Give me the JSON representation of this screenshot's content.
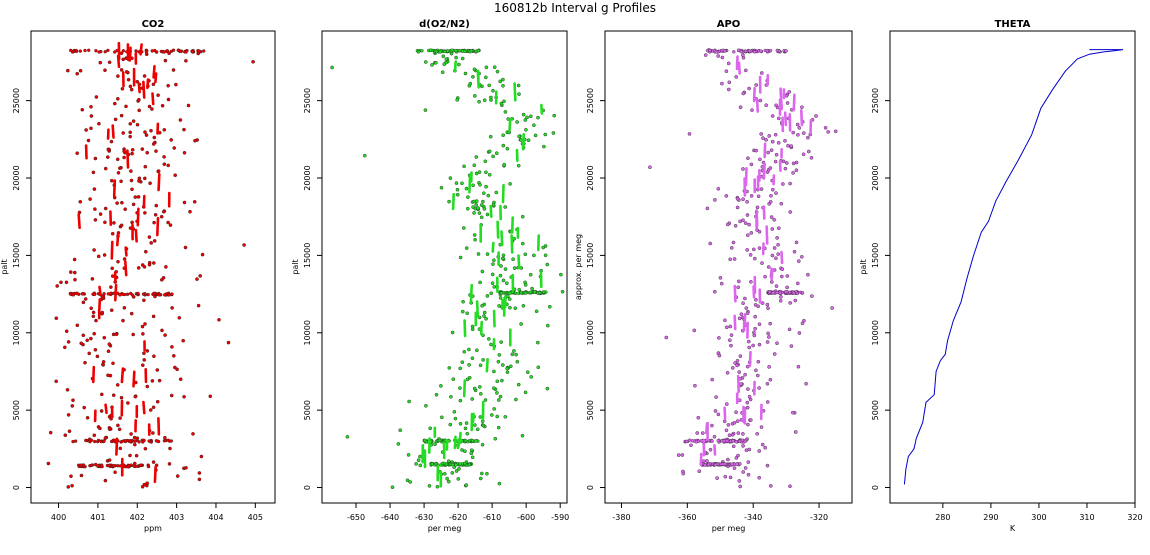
{
  "figure": {
    "title": "160812b   Interval g Profiles"
  },
  "chart_data": [
    {
      "type": "scatter",
      "title": "CO2",
      "xlabel": "ppm",
      "ylabel": "palt",
      "xlim": [
        399.3,
        405.5
      ],
      "ylim": [
        -1000,
        29500
      ],
      "xticks": [
        400,
        401,
        402,
        403,
        404,
        405
      ],
      "yticks": [
        0,
        5000,
        10000,
        15000,
        20000,
        25000
      ],
      "grid": false,
      "color": "#ee0000",
      "spread": 0.9,
      "profile": [
        [
          0,
          402.1
        ],
        [
          1500,
          401.7
        ],
        [
          3000,
          401.6
        ],
        [
          5000,
          401.8
        ],
        [
          7000,
          401.7
        ],
        [
          9000,
          401.6
        ],
        [
          11000,
          401.6
        ],
        [
          12500,
          401.5
        ],
        [
          14000,
          401.6
        ],
        [
          16000,
          401.7
        ],
        [
          18000,
          401.9
        ],
        [
          20000,
          401.9
        ],
        [
          22000,
          401.9
        ],
        [
          24000,
          401.9
        ],
        [
          26000,
          402.3
        ],
        [
          28200,
          402.1
        ]
      ],
      "dense_rows": [
        {
          "y": 28200,
          "x0": 400.3,
          "x1": 403.7
        },
        {
          "y": 3000,
          "x0": 400.3,
          "x1": 402.9
        },
        {
          "y": 1400,
          "x0": 400.5,
          "x1": 402.3
        },
        {
          "y": 12500,
          "x0": 400.3,
          "x1": 402.9
        }
      ]
    },
    {
      "type": "scatter",
      "title": "d(O2/N2)",
      "xlabel": "per meg",
      "ylabel": "palt",
      "xlim": [
        -660,
        -588
      ],
      "ylim": [
        -1000,
        29500
      ],
      "xticks": [
        -650,
        -640,
        -630,
        -620,
        -610,
        -600,
        -590
      ],
      "yticks": [
        0,
        5000,
        10000,
        15000,
        20000,
        25000
      ],
      "grid": false,
      "color": "#22dd22",
      "spread": 7,
      "profile": [
        [
          0,
          -624
        ],
        [
          1500,
          -626
        ],
        [
          3000,
          -622
        ],
        [
          5000,
          -617
        ],
        [
          6500,
          -614
        ],
        [
          8000,
          -610
        ],
        [
          10000,
          -612
        ],
        [
          12000,
          -609
        ],
        [
          13000,
          -604
        ],
        [
          14500,
          -603
        ],
        [
          16000,
          -606
        ],
        [
          18000,
          -614
        ],
        [
          20000,
          -613
        ],
        [
          22000,
          -604
        ],
        [
          23500,
          -596
        ],
        [
          25000,
          -606
        ],
        [
          26500,
          -616
        ],
        [
          28200,
          -624
        ]
      ],
      "dense_rows": [
        {
          "y": 28200,
          "x0": -632,
          "x1": -612
        },
        {
          "y": 3000,
          "x0": -630,
          "x1": -614
        },
        {
          "y": 1500,
          "x0": -628,
          "x1": -616
        },
        {
          "y": 12600,
          "x0": -608,
          "x1": -594
        }
      ]
    },
    {
      "type": "scatter",
      "title": "APO",
      "xlabel": "per meg",
      "ylabel": "approx. per meg",
      "xlim": [
        -385,
        -310
      ],
      "ylim": [
        -1000,
        29500
      ],
      "xticks": [
        -380,
        -360,
        -340,
        -320
      ],
      "yticks": [
        0,
        5000,
        10000,
        15000,
        20000,
        25000
      ],
      "grid": false,
      "color": "#dd66ee",
      "spread": 7,
      "profile": [
        [
          0,
          -347
        ],
        [
          1500,
          -349
        ],
        [
          3000,
          -348
        ],
        [
          5000,
          -344
        ],
        [
          7000,
          -341
        ],
        [
          9000,
          -342
        ],
        [
          11000,
          -341
        ],
        [
          12600,
          -337
        ],
        [
          14000,
          -333
        ],
        [
          16000,
          -338
        ],
        [
          18000,
          -342
        ],
        [
          20000,
          -338
        ],
        [
          22000,
          -332
        ],
        [
          23500,
          -326
        ],
        [
          25000,
          -334
        ],
        [
          26500,
          -341
        ],
        [
          28200,
          -345
        ]
      ],
      "dense_rows": [
        {
          "y": 28200,
          "x0": -354,
          "x1": -330
        },
        {
          "y": 3000,
          "x0": -362,
          "x1": -342
        },
        {
          "y": 1500,
          "x0": -356,
          "x1": -344
        },
        {
          "y": 12600,
          "x0": -336,
          "x1": -325
        }
      ]
    },
    {
      "type": "line",
      "title": "THETA",
      "xlabel": "K",
      "ylabel": "palt",
      "xlim": [
        269,
        320
      ],
      "ylim": [
        -1000,
        29500
      ],
      "xticks": [
        280,
        290,
        300,
        310,
        320
      ],
      "yticks": [
        0,
        5000,
        10000,
        15000,
        20000,
        25000
      ],
      "grid": false,
      "color": "#0000cc",
      "points": [
        [
          272.0,
          200
        ],
        [
          272.3,
          1200
        ],
        [
          272.8,
          2000
        ],
        [
          274.0,
          2500
        ],
        [
          274.5,
          3200
        ],
        [
          275.8,
          4200
        ],
        [
          276.5,
          5500
        ],
        [
          278.2,
          6000
        ],
        [
          278.6,
          7500
        ],
        [
          279.5,
          8200
        ],
        [
          280.5,
          8600
        ],
        [
          281.0,
          9500
        ],
        [
          282.2,
          10800
        ],
        [
          283.8,
          12000
        ],
        [
          285.0,
          13500
        ],
        [
          286.4,
          15000
        ],
        [
          288.0,
          16500
        ],
        [
          289.5,
          17200
        ],
        [
          291.0,
          18500
        ],
        [
          293.2,
          19800
        ],
        [
          295.8,
          21200
        ],
        [
          298.5,
          22800
        ],
        [
          300.4,
          24500
        ],
        [
          302.8,
          25700
        ],
        [
          305.5,
          26900
        ],
        [
          308.0,
          27700
        ],
        [
          310.5,
          28000
        ],
        [
          313.5,
          28150
        ],
        [
          315.0,
          28200
        ],
        [
          317.5,
          28300
        ],
        [
          315.0,
          28300
        ],
        [
          310.5,
          28300
        ]
      ]
    }
  ]
}
